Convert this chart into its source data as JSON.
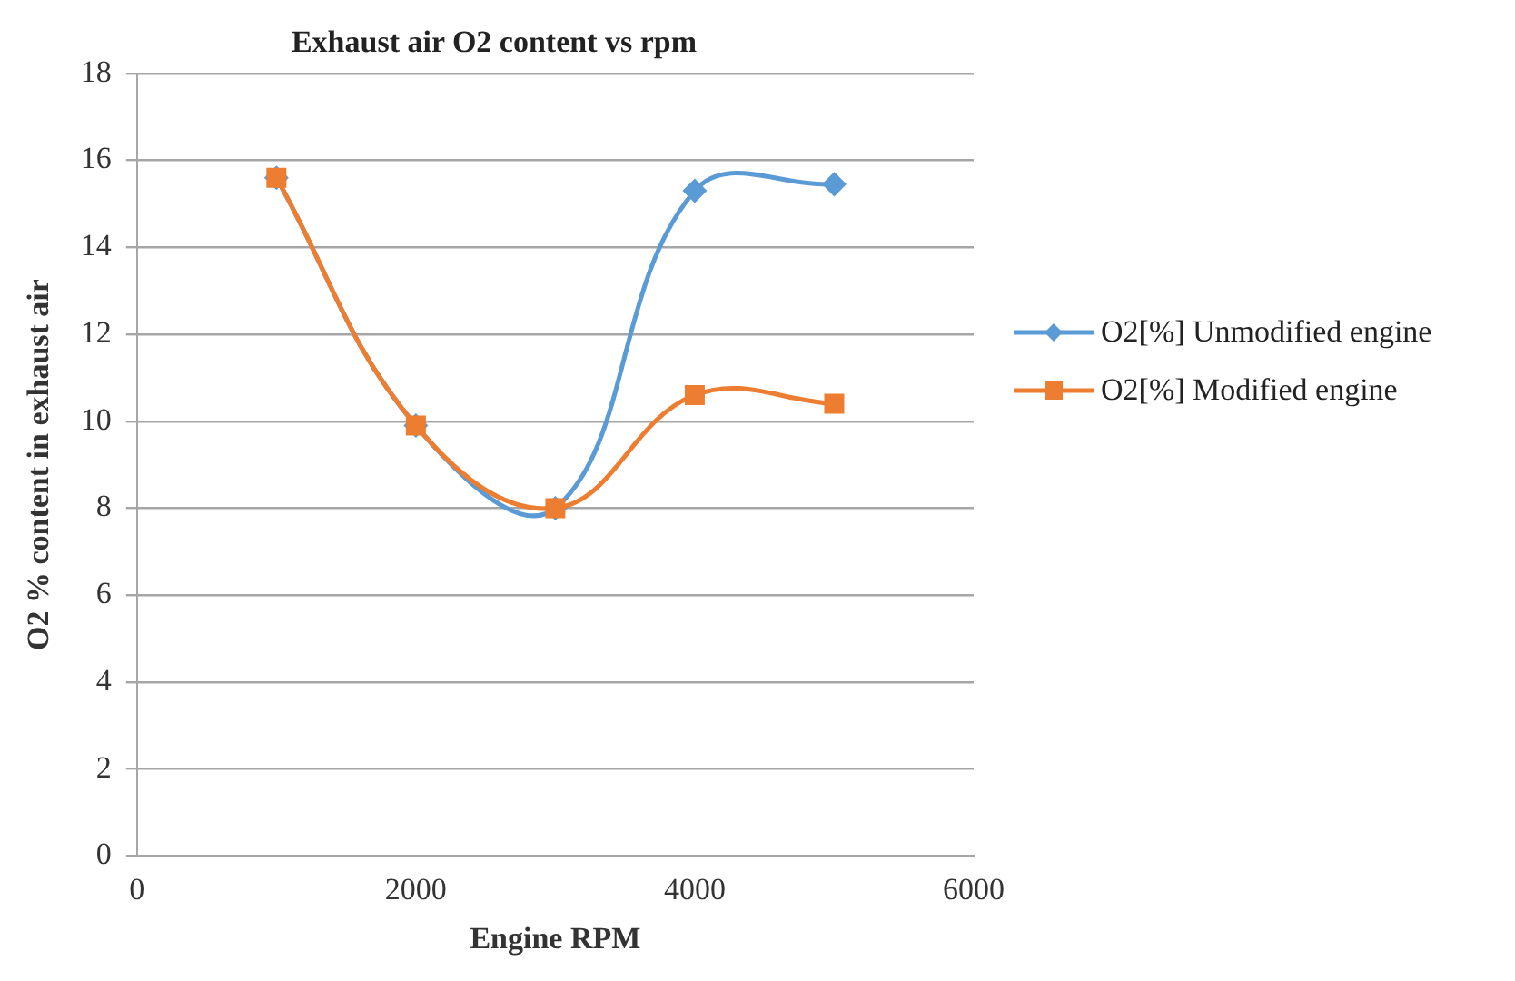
{
  "chart_data": {
    "type": "line",
    "title": "Exhaust air O2 content vs rpm",
    "xlabel": "Engine RPM",
    "ylabel": "O2 % content in exhaust air",
    "x": [
      1000,
      2000,
      3000,
      4000,
      5000
    ],
    "series": [
      {
        "name": "O2[%] Unmodified engine",
        "color": "#5b9bd5",
        "marker": "diamond",
        "values": [
          15.6,
          9.9,
          8.0,
          15.3,
          15.45
        ]
      },
      {
        "name": "O2[%] Modified engine",
        "color": "#ed7d31",
        "marker": "square",
        "values": [
          15.6,
          9.9,
          8.0,
          10.6,
          10.4
        ]
      }
    ],
    "xlim": [
      0,
      6000
    ],
    "xticks": [
      0,
      2000,
      4000,
      6000
    ],
    "ylim": [
      0,
      18
    ],
    "yticks": [
      0,
      2,
      4,
      6,
      8,
      10,
      12,
      14,
      16,
      18
    ],
    "grid": "y",
    "legend": "right",
    "line_style": "solid"
  }
}
